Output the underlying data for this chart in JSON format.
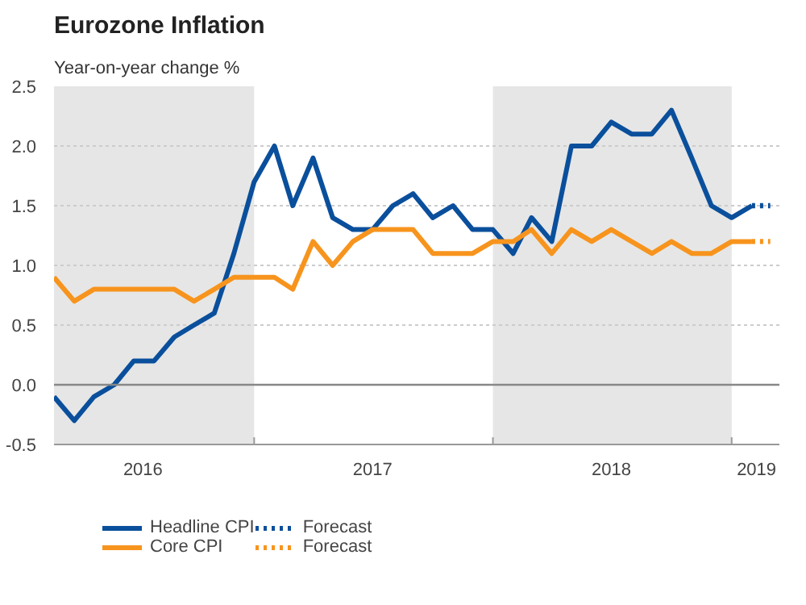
{
  "chart_data": {
    "type": "line",
    "title": "Eurozone Inflation",
    "subtitle": "Year-on-year change %",
    "x": [
      "2016-03",
      "2016-04",
      "2016-05",
      "2016-06",
      "2016-07",
      "2016-08",
      "2016-09",
      "2016-10",
      "2016-11",
      "2016-12",
      "2017-01",
      "2017-02",
      "2017-03",
      "2017-04",
      "2017-05",
      "2017-06",
      "2017-07",
      "2017-08",
      "2017-09",
      "2017-10",
      "2017-11",
      "2017-12",
      "2018-01",
      "2018-02",
      "2018-03",
      "2018-04",
      "2018-05",
      "2018-06",
      "2018-07",
      "2018-08",
      "2018-09",
      "2018-10",
      "2018-11",
      "2018-12",
      "2019-01",
      "2019-02"
    ],
    "series": [
      {
        "name": "Headline CPI",
        "color": "#0a4f9c",
        "values": [
          -0.1,
          -0.3,
          -0.1,
          0.0,
          0.2,
          0.2,
          0.4,
          0.5,
          0.6,
          1.1,
          1.7,
          2.0,
          1.5,
          1.9,
          1.4,
          1.3,
          1.3,
          1.5,
          1.6,
          1.4,
          1.5,
          1.3,
          1.3,
          1.1,
          1.4,
          1.2,
          2.0,
          2.0,
          2.2,
          2.1,
          2.1,
          2.3,
          1.9,
          1.5,
          1.4,
          1.5
        ]
      },
      {
        "name": "Core CPI",
        "color": "#f7941d",
        "values": [
          0.9,
          0.7,
          0.8,
          0.8,
          0.8,
          0.8,
          0.8,
          0.7,
          0.8,
          0.9,
          0.9,
          0.9,
          0.8,
          1.2,
          1.0,
          1.2,
          1.3,
          1.3,
          1.3,
          1.1,
          1.1,
          1.1,
          1.2,
          1.2,
          1.3,
          1.1,
          1.3,
          1.2,
          1.3,
          1.2,
          1.1,
          1.2,
          1.1,
          1.1,
          1.2,
          1.2
        ]
      },
      {
        "name": "Forecast",
        "color": "#0a4f9c",
        "line_style": "dotted",
        "x": [
          "2019-02",
          "2019-03"
        ],
        "values": [
          1.5,
          1.5
        ]
      },
      {
        "name": "Forecast",
        "color": "#f7941d",
        "line_style": "dotted",
        "x": [
          "2019-02",
          "2019-03"
        ],
        "values": [
          1.2,
          1.2
        ]
      }
    ],
    "xlim": [
      "2016-03",
      "2019-03-15"
    ],
    "xticks": [
      {
        "value": "2017-01",
        "label": null
      },
      {
        "value": "2018-01",
        "label": null
      },
      {
        "value": "2019-01",
        "label": null
      },
      {
        "value": "2016-07-15",
        "label": "2016"
      },
      {
        "value": "2017-07-01",
        "label": "2017"
      },
      {
        "value": "2018-07-01",
        "label": "2018"
      },
      {
        "value": "2019-02-08",
        "label": "2019"
      }
    ],
    "ylim": [
      -0.5,
      2.5
    ],
    "yticks": [
      -0.5,
      {
        "value": 0,
        "label": "0.0"
      },
      0.5,
      {
        "value": 1,
        "label": "1.0"
      },
      1.5,
      {
        "value": 2,
        "label": "2.0"
      },
      2.5
    ],
    "bands": [
      {
        "axis": "x",
        "from": "2016-03",
        "to": "2017-01",
        "color": "#e6e6e6"
      },
      {
        "axis": "x",
        "from": "2018-01",
        "to": "2019-01",
        "color": "#e6e6e6"
      }
    ],
    "ref_lines": [
      {
        "axis": "y",
        "value": 0,
        "color": "#888888"
      }
    ],
    "grid": "y",
    "legend": "bottom",
    "line_style": "solid",
    "marker": "none"
  }
}
